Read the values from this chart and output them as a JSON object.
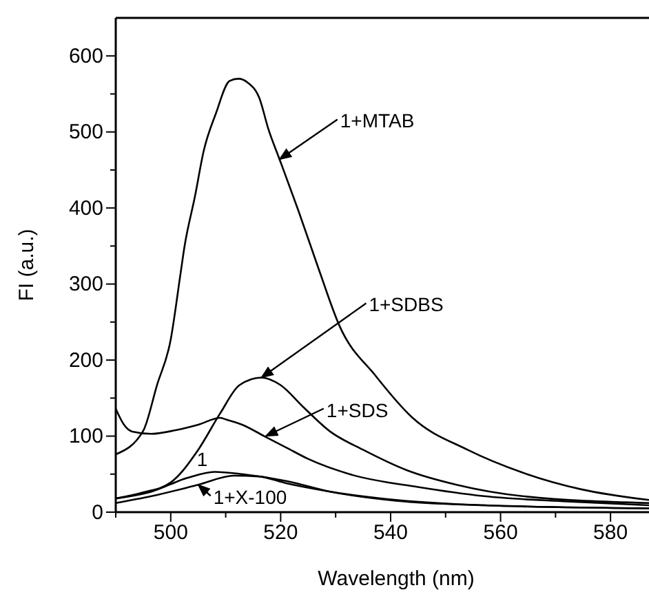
{
  "chart_data": {
    "type": "line",
    "xlabel": "Wavelength (nm)",
    "ylabel": "FI (a.u.)",
    "xlim": [
      490,
      587
    ],
    "ylim": [
      0,
      650
    ],
    "xticks": [
      {
        "value": 490,
        "label": null
      },
      500,
      {
        "value": 510,
        "label": null
      },
      520,
      {
        "value": 530,
        "label": null
      },
      540,
      {
        "value": 550,
        "label": null
      },
      560,
      {
        "value": 570,
        "label": null
      },
      580
    ],
    "yticks": [
      0,
      {
        "value": 50,
        "label": null
      },
      100,
      {
        "value": 150,
        "label": null
      },
      200,
      {
        "value": 250,
        "label": null
      },
      300,
      {
        "value": 350,
        "label": null
      },
      400,
      {
        "value": 450,
        "label": null
      },
      500,
      {
        "value": 550,
        "label": null
      },
      600
    ],
    "grid": false,
    "marker": "none",
    "line_style": "solid",
    "annotations": [
      {
        "text": "1+MTAB",
        "x": 519.8,
        "y": 464
      },
      {
        "text": "1+SDBS",
        "x": 516.5,
        "y": 177
      },
      {
        "text": "1+SDS",
        "x": 517.3,
        "y": 100
      },
      {
        "text": "1",
        "x": 507,
        "y": 53
      },
      {
        "text": "1+X-100",
        "x": 505,
        "y": 36
      }
    ],
    "series": [
      {
        "color": "#000000",
        "x": [
          490,
          495,
          497.5,
          500,
          501.75,
          502.5,
          504.4,
          506,
          508.2,
          510.7,
          512.3,
          514,
          516.1,
          517.8,
          519.8,
          523.2,
          527,
          530.7,
          537.3,
          544,
          554,
          564,
          574.7,
          587
        ],
        "values": [
          76,
          107,
          167,
          227,
          312,
          349,
          415,
          475,
          524,
          567,
          570,
          565,
          545,
          503,
          464,
          397,
          318,
          245,
          179,
          124,
          82,
          52,
          30,
          16
        ]
      },
      {
        "color": "#000000",
        "x": [
          490,
          495,
          500,
          505,
          509,
          512.5,
          516.5,
          520,
          524,
          529,
          535,
          543,
          552,
          564,
          587
        ],
        "values": [
          18,
          26,
          39,
          82,
          130,
          167,
          177,
          167,
          139,
          106,
          82,
          55,
          36,
          21,
          12
        ]
      },
      {
        "color": "#000000",
        "x": [
          490,
          491.5,
          493,
          496.5,
          501,
          505,
          509,
          510,
          513,
          517,
          521,
          525,
          533,
          545,
          557,
          572,
          587
        ],
        "values": [
          136,
          115,
          106,
          103,
          108,
          115,
          124,
          122,
          115,
          100,
          85,
          70,
          49,
          33,
          21,
          14,
          9
        ]
      },
      {
        "color": "#000000",
        "x": [
          490,
          496.5,
          503,
          508,
          513,
          521,
          529,
          541,
          557,
          587
        ],
        "values": [
          18,
          27,
          45,
          53,
          50,
          41,
          27,
          15,
          9,
          5
        ]
      },
      {
        "color": "#000000",
        "x": [
          490,
          496.5,
          505,
          511.5,
          516,
          521,
          529,
          541,
          557,
          587
        ],
        "values": [
          12,
          21,
          36,
          48,
          47,
          38,
          27,
          16,
          9,
          5
        ]
      }
    ]
  }
}
